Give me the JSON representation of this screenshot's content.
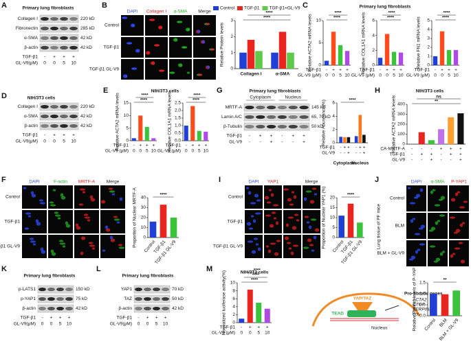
{
  "panel_letters": [
    "A",
    "B",
    "C",
    "D",
    "E",
    "F",
    "G",
    "H",
    "I",
    "J",
    "K",
    "L",
    "M"
  ],
  "blots": [
    {
      "title": "Primary lung fibroblasts",
      "bands": [
        {
          "name": "Collagen I",
          "size": "220 kD"
        },
        {
          "name": "Fibronectin",
          "size": "285 kD"
        },
        {
          "name": "α-SMA",
          "size": "42 kD"
        },
        {
          "name": "β-actin",
          "size": "42 kD"
        }
      ],
      "conditions": [
        {
          "label": "TGF-β1",
          "values": [
            "-",
            "+",
            "+",
            "+"
          ]
        },
        {
          "label": "GL-V9(μM)",
          "values": [
            "0",
            "0",
            "5",
            "10"
          ]
        }
      ]
    },
    {
      "title": "NIH/3T3 cells",
      "bands": [
        {
          "name": "Collagen I",
          "size": "220 kD"
        },
        {
          "name": "α-SMA",
          "size": "42 kD"
        },
        {
          "name": "β-actin",
          "size": "42 kD"
        }
      ],
      "conditions": [
        {
          "label": "TGF-β1",
          "values": [
            "-",
            "+",
            "+",
            "+"
          ]
        },
        {
          "label": "GL-V9(μM)",
          "values": [
            "0",
            "0",
            "5",
            "10"
          ]
        }
      ]
    },
    {
      "title": "Primary lung fibroblasts",
      "groups": [
        "Cytoplasm",
        "Nucleus"
      ],
      "bands": [
        {
          "name": "MRTF-A",
          "size": "145 kD"
        },
        {
          "name": "Lamin A/C",
          "size": "65, 70 kD"
        },
        {
          "name": "β-Tubulin",
          "size": "50 kD"
        }
      ],
      "conditions": [
        {
          "label": "TGF-β1",
          "values": [
            "-",
            "+",
            "+",
            "-",
            "+",
            "+"
          ]
        },
        {
          "label": "GL-V9",
          "values": [
            "-",
            "-",
            "+",
            "-",
            "-",
            "+"
          ]
        }
      ]
    },
    {
      "title": "Primary lung fibroblasts",
      "bands": [
        {
          "name": "p-LATS1",
          "size": "150 kD"
        },
        {
          "name": "p-YAP1",
          "size": "75 kD"
        },
        {
          "name": "β-actin",
          "size": "42 kD"
        }
      ],
      "conditions": [
        {
          "label": "TGF-β1",
          "values": [
            "-",
            "+",
            "+",
            "+"
          ]
        },
        {
          "label": "GL-V9(μM)",
          "values": [
            "0",
            "0",
            "5",
            "10"
          ]
        }
      ]
    },
    {
      "title": "Primary lung fibroblasts",
      "bands": [
        {
          "name": "YAP1",
          "size": "70 kD"
        },
        {
          "name": "TAZ",
          "size": "50 kD"
        },
        {
          "name": "β-actin",
          "size": "42 kD"
        }
      ],
      "conditions": [
        {
          "label": "TGF-β1",
          "values": [
            "-",
            "+",
            "+",
            "+"
          ]
        },
        {
          "label": "GL-V9(μM)",
          "values": [
            "0",
            "0",
            "5",
            "10"
          ]
        }
      ]
    }
  ],
  "image_grids": [
    {
      "channels": [
        "DAPI",
        "Collagen I",
        "α-SMA",
        "Merge"
      ],
      "channel_colors": [
        "#2f4cff",
        "#e02020",
        "#22b022",
        "#222222"
      ],
      "rows": [
        "Control",
        "TGF-β1",
        "TGF-β1 GL-V9"
      ]
    },
    {
      "channels": [
        "DAPI",
        "F-actin",
        "MRTF-A",
        "Merge"
      ],
      "channel_colors": [
        "#2f4cff",
        "#22b022",
        "#e02020",
        "#222222"
      ],
      "rows": [
        "Control",
        "TGF-β1",
        "TGF-β1 GL-V9"
      ]
    },
    {
      "channels": [
        "DAPI",
        "YAP1",
        null,
        "Merge"
      ],
      "channel_colors": [
        "#2f4cff",
        "#e02020",
        "#e02020",
        "#222222"
      ],
      "rows": [
        "Control",
        "TGF-β1",
        "TGF-β1 GL-V9"
      ]
    },
    {
      "channels": [
        "DAPI",
        "α-SMA",
        "P-YAP1"
      ],
      "channel_colors": [
        "#2f4cff",
        "#22b022",
        "#e02020"
      ],
      "rows": [
        "Control",
        "BLM",
        "BLM + GL-V9"
      ],
      "side_label": "Lung tissue of PF mice"
    }
  ],
  "chart_data": [
    {
      "type": "bar",
      "categories": [
        "Collagen I",
        "α-SMA"
      ],
      "series": [
        {
          "name": "Control",
          "color": "#1f3fd6",
          "values": [
            1,
            1
          ]
        },
        {
          "name": "TGF-β1",
          "color": "#e8251e",
          "values": [
            1.8,
            2.3
          ]
        },
        {
          "name": "TGF-β1+GL-V9",
          "color": "#5ec94a",
          "values": [
            1.1,
            1.0
          ]
        }
      ],
      "ylabel": "Relative Protein levels",
      "ylim": [
        0,
        3
      ],
      "yticks": [
        0,
        1,
        2,
        3
      ],
      "annotations": [
        "****",
        "****"
      ]
    },
    {
      "type": "bar",
      "title": "Primary lung fibroblasts",
      "values": [
        1,
        7.5,
        4.5,
        3.2
      ],
      "colors": [
        "#1f3fd6",
        "#ff4a1a",
        "#3cc33c",
        "#b04ae6"
      ],
      "ylabel": "Relative ACTA2 mRNA levels",
      "ylim": [
        0,
        10
      ],
      "yticks": [
        0,
        5,
        10
      ],
      "annotations": [
        "****",
        "****"
      ],
      "conditions": [
        {
          "label": "TGF-β1",
          "values": [
            "-",
            "+",
            "+",
            "+"
          ]
        },
        {
          "label": "GL-V9 (μM)",
          "values": [
            "0",
            "0",
            "5",
            "10"
          ]
        }
      ]
    },
    {
      "type": "bar",
      "values": [
        1,
        4.2,
        1.8,
        1.7
      ],
      "colors": [
        "#1f3fd6",
        "#ff4a1a",
        "#3cc33c",
        "#b04ae6"
      ],
      "ylabel": "Relative COL1A1 mRNA levels",
      "ylim": [
        0,
        6
      ],
      "yticks": [
        0,
        2,
        4,
        6
      ],
      "annotations": [
        "****",
        "****"
      ],
      "conditions": [
        {
          "label": "TGF-β1",
          "values": [
            "-",
            "+",
            "+",
            "+"
          ]
        },
        {
          "label": "GL-V9 (μM)",
          "values": [
            "0",
            "0",
            "5",
            "10"
          ]
        }
      ]
    },
    {
      "type": "bar",
      "values": [
        1,
        3.8,
        1.7,
        1.7
      ],
      "colors": [
        "#1f3fd6",
        "#ff4a1a",
        "#3cc33c",
        "#b04ae6"
      ],
      "ylabel": "Relative FN1 mRNA levels",
      "ylim": [
        0,
        5
      ],
      "yticks": [
        0,
        1,
        2,
        3,
        4,
        5
      ],
      "annotations": [
        "****",
        "****"
      ],
      "conditions": [
        {
          "label": "TGF-β1",
          "values": [
            "-",
            "+",
            "+",
            "+"
          ]
        },
        {
          "label": "GL-V9 (μM)",
          "values": [
            "0",
            "0",
            "5",
            "10"
          ]
        }
      ]
    },
    {
      "type": "bar",
      "title": "NIH/3T3 cells",
      "values": [
        1,
        10,
        5.5,
        1
      ],
      "colors": [
        "#1f3fd6",
        "#ff4a1a",
        "#3cc33c",
        "#b04ae6"
      ],
      "ylabel": "Relative ACTA2 mRNA levels",
      "ylim": [
        0,
        15
      ],
      "yticks": [
        0,
        5,
        10,
        15
      ],
      "annotations": [
        "****",
        "****"
      ],
      "conditions": [
        {
          "label": "TGF-β1",
          "values": [
            "-",
            "+",
            "+",
            "+"
          ]
        },
        {
          "label": "GL-V9 (μM)",
          "values": [
            "0",
            "0",
            "5",
            "10"
          ]
        }
      ]
    },
    {
      "type": "bar",
      "values": [
        1,
        2.3,
        0.65,
        0.6
      ],
      "colors": [
        "#1f3fd6",
        "#ff4a1a",
        "#3cc33c",
        "#b04ae6"
      ],
      "ylabel": "Relative COL1A1 mRNA levels",
      "ylim": [
        0,
        2.5
      ],
      "yticks": [
        {
          "value": 0,
          "label": "0.0"
        },
        {
          "value": 0.5,
          "label": "0.5"
        },
        {
          "value": 1,
          "label": "1.0"
        },
        {
          "value": 1.5,
          "label": "1.5"
        },
        {
          "value": 2,
          "label": "2.0"
        },
        {
          "value": 2.5,
          "label": "2.5"
        }
      ],
      "annotations": [
        "****",
        "****"
      ],
      "conditions": [
        {
          "label": "TGF-β1",
          "values": [
            "-",
            "+",
            "+",
            "+"
          ]
        },
        {
          "label": "GL-V9 (μM)",
          "values": [
            "0",
            "0",
            "5",
            "10"
          ]
        }
      ]
    },
    {
      "type": "bar",
      "categories": [
        "Cytoplasm",
        "Nucleus"
      ],
      "series": [
        {
          "color": "#1f3fd6",
          "values": [
            0.9,
            1.0
          ]
        },
        {
          "color": "#ff7a1a",
          "values": [
            0.85,
            4.2
          ]
        },
        {
          "color": "#111111",
          "values": [
            0.85,
            1.2
          ]
        }
      ],
      "ylabel": "Relative Abundance(%)",
      "ylim": [
        0,
        6
      ],
      "yticks": [
        0,
        2,
        4,
        6
      ],
      "annotations": [
        "****"
      ],
      "conditions": [
        {
          "label": "TGF-β1",
          "values": [
            "-",
            "+",
            "+",
            "-",
            "+",
            "+"
          ]
        },
        {
          "label": "GL-V9",
          "values": [
            "-",
            "-",
            "+",
            "-",
            "-",
            "+"
          ]
        }
      ]
    },
    {
      "type": "bar",
      "title": "NIH/3T3 cells",
      "values": [
        1,
        120,
        40,
        150,
        270,
        310
      ],
      "colors": [
        "#1f3fd6",
        "#e8251e",
        "#3cc33c",
        "#c070e8",
        "#ffa030",
        "#111111"
      ],
      "ylabel": "Relative ACTA2 mRNA levels",
      "ylim": [
        0,
        400
      ],
      "yticks": [
        0,
        100,
        200,
        300,
        400
      ],
      "annotations": [
        "**",
        "ns"
      ],
      "conditions": [
        {
          "label": "CA-MRTF-A",
          "values": [
            "-",
            "-",
            "-",
            "+",
            "+",
            "+"
          ]
        },
        {
          "label": "TGF-β1",
          "values": [
            "-",
            "+",
            "+",
            "-",
            "+",
            "+"
          ]
        },
        {
          "label": "GL-V9",
          "values": [
            "-",
            "-",
            "+",
            "-",
            "-",
            "+"
          ]
        }
      ]
    },
    {
      "type": "bar",
      "categories": [
        "Control",
        "TGF-β1",
        "TGF-β1 GL-V9"
      ],
      "values": [
        16,
        33,
        20
      ],
      "colors": [
        "#1f3fd6",
        "#e8251e",
        "#3cc33c"
      ],
      "ylabel": "Proportion of Nuclear MRTF-A",
      "ylim": [
        0,
        40
      ],
      "yticks": [
        0,
        10,
        20,
        30,
        40
      ],
      "annotations": [
        "****"
      ]
    },
    {
      "type": "bar",
      "categories": [
        "Control",
        "TGF-β1",
        "TGF-β1 GL-V9"
      ],
      "values": [
        11,
        17,
        7.5
      ],
      "colors": [
        "#1f3fd6",
        "#e8251e",
        "#3cc33c"
      ],
      "ylabel": "Proportion of Nuclear YAP1 (%)",
      "ylim": [
        0,
        20
      ],
      "yticks": [
        0,
        5,
        10,
        15,
        20
      ],
      "annotations": [
        "****"
      ]
    },
    {
      "type": "bar",
      "title": "NIH/3T3 cells",
      "values": [
        1,
        8.3,
        5,
        3.5
      ],
      "colors": [
        "#1f3fd6",
        "#e8251e",
        "#3cc33c",
        "#b04ae6"
      ],
      "ylabel": "Normalized luciferase activity(%)",
      "ylim": [
        0,
        10
      ],
      "yticks": [
        0,
        2,
        4,
        6,
        8,
        10
      ],
      "annotations": [
        "****",
        "****",
        "****"
      ],
      "conditions": [
        {
          "label": "TGF-β1",
          "values": [
            "-",
            "+",
            "+",
            "+"
          ]
        },
        {
          "label": "GL-V9 (μM)",
          "values": [
            "0",
            "0",
            "5",
            "10"
          ]
        }
      ]
    },
    {
      "type": "bar",
      "categories": [
        "Control",
        "BLM",
        "BLM + GL-V9"
      ],
      "values": [
        1.0,
        0.98,
        1.15
      ],
      "colors": [
        "#1f3fd6",
        "#e8251e",
        "#3cc33c"
      ],
      "ylabel": "Relative Protein levels of P-YAP",
      "ylim": [
        0,
        1.5
      ],
      "yticks": [
        {
          "value": 0,
          "label": "0.0"
        },
        {
          "value": 0.5,
          "label": "0.5"
        },
        {
          "value": 1,
          "label": "1.0"
        },
        {
          "value": 1.5,
          "label": "1.5"
        }
      ],
      "annotations": [
        "**"
      ]
    }
  ],
  "diagram": {
    "proteins": [
      "YAP/TAZ",
      "TEAD"
    ],
    "compartment": "Nucleus",
    "genes_title": "Pro-fibrotic genes",
    "genes": [
      "ACTA2",
      "CTGF",
      "SERPINE1",
      "ect."
    ]
  }
}
